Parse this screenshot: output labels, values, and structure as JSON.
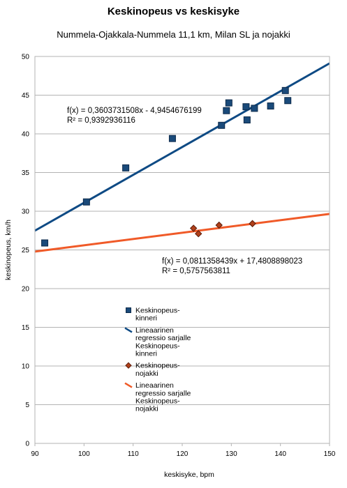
{
  "chart_data": {
    "type": "scatter",
    "title": "Keskinopeus vs keskisyke",
    "subtitle": "Nummela-Ojakkala-Nummela 11,1 km, Milan SL ja nojakki",
    "xlabel": "keskisyke, bpm",
    "ylabel": "keskinopeus, km/h",
    "xlim": [
      90,
      150
    ],
    "ylim": [
      0,
      50
    ],
    "xticks": [
      90,
      100,
      110,
      120,
      130,
      140,
      150
    ],
    "yticks": [
      0,
      5,
      10,
      15,
      20,
      25,
      30,
      35,
      40,
      45,
      50
    ],
    "grid": "horizontal",
    "series": [
      {
        "name": "Keskinopeus-kinneri",
        "color": "#1a4a7a",
        "marker": "square",
        "points": [
          [
            92,
            25.9
          ],
          [
            100.5,
            31.2
          ],
          [
            108.5,
            35.6
          ],
          [
            118,
            39.4
          ],
          [
            128,
            41.1
          ],
          [
            129,
            43.0
          ],
          [
            129.5,
            44.0
          ],
          [
            133,
            43.5
          ],
          [
            133.2,
            41.8
          ],
          [
            134.7,
            43.3
          ],
          [
            138,
            43.6
          ],
          [
            141,
            45.6
          ],
          [
            141.5,
            44.3
          ]
        ]
      },
      {
        "name": "Keskinopeus-nojakki",
        "color": "#b0401a",
        "marker": "diamond",
        "points": [
          [
            122.3,
            27.8
          ],
          [
            123.3,
            27.1
          ],
          [
            127.5,
            28.2
          ],
          [
            134.3,
            28.4
          ]
        ]
      }
    ],
    "trendlines": [
      {
        "name": "Lineaarinen regressio sarjalle Keskinopeus-kinneri",
        "color": "#0e4a84",
        "slope": 0.3603731508,
        "intercept": -4.9454676199,
        "equation": "f(x) = 0,3603731508x - 4,9454676199",
        "r2": "R² = 0,9392936116"
      },
      {
        "name": "Lineaarinen regressio sarjalle Keskinopeus-nojakki",
        "color": "#f05a28",
        "slope": 0.0811358439,
        "intercept": 17.4808898023,
        "equation": "f(x) = 0,0811358439x + 17,4808898023",
        "r2": "R² = 0,5757563811"
      }
    ],
    "legend": {
      "placement": "inside-center",
      "entries": [
        {
          "lines": [
            "Keskinopeus-",
            "kinneri"
          ],
          "kind": "square",
          "color": "#1a4a7a"
        },
        {
          "lines": [
            "Lineaarinen",
            "regressio sarjalle",
            "Keskinopeus-",
            "kinneri"
          ],
          "kind": "line",
          "color": "#0e4a84"
        },
        {
          "lines": [
            "Keskinopeus-",
            "nojakki"
          ],
          "kind": "diamond",
          "color": "#b0401a"
        },
        {
          "lines": [
            "Lineaarinen",
            "regressio sarjalle",
            "Keskinopeus-",
            "nojakki"
          ],
          "kind": "line",
          "color": "#f05a28"
        }
      ]
    }
  }
}
